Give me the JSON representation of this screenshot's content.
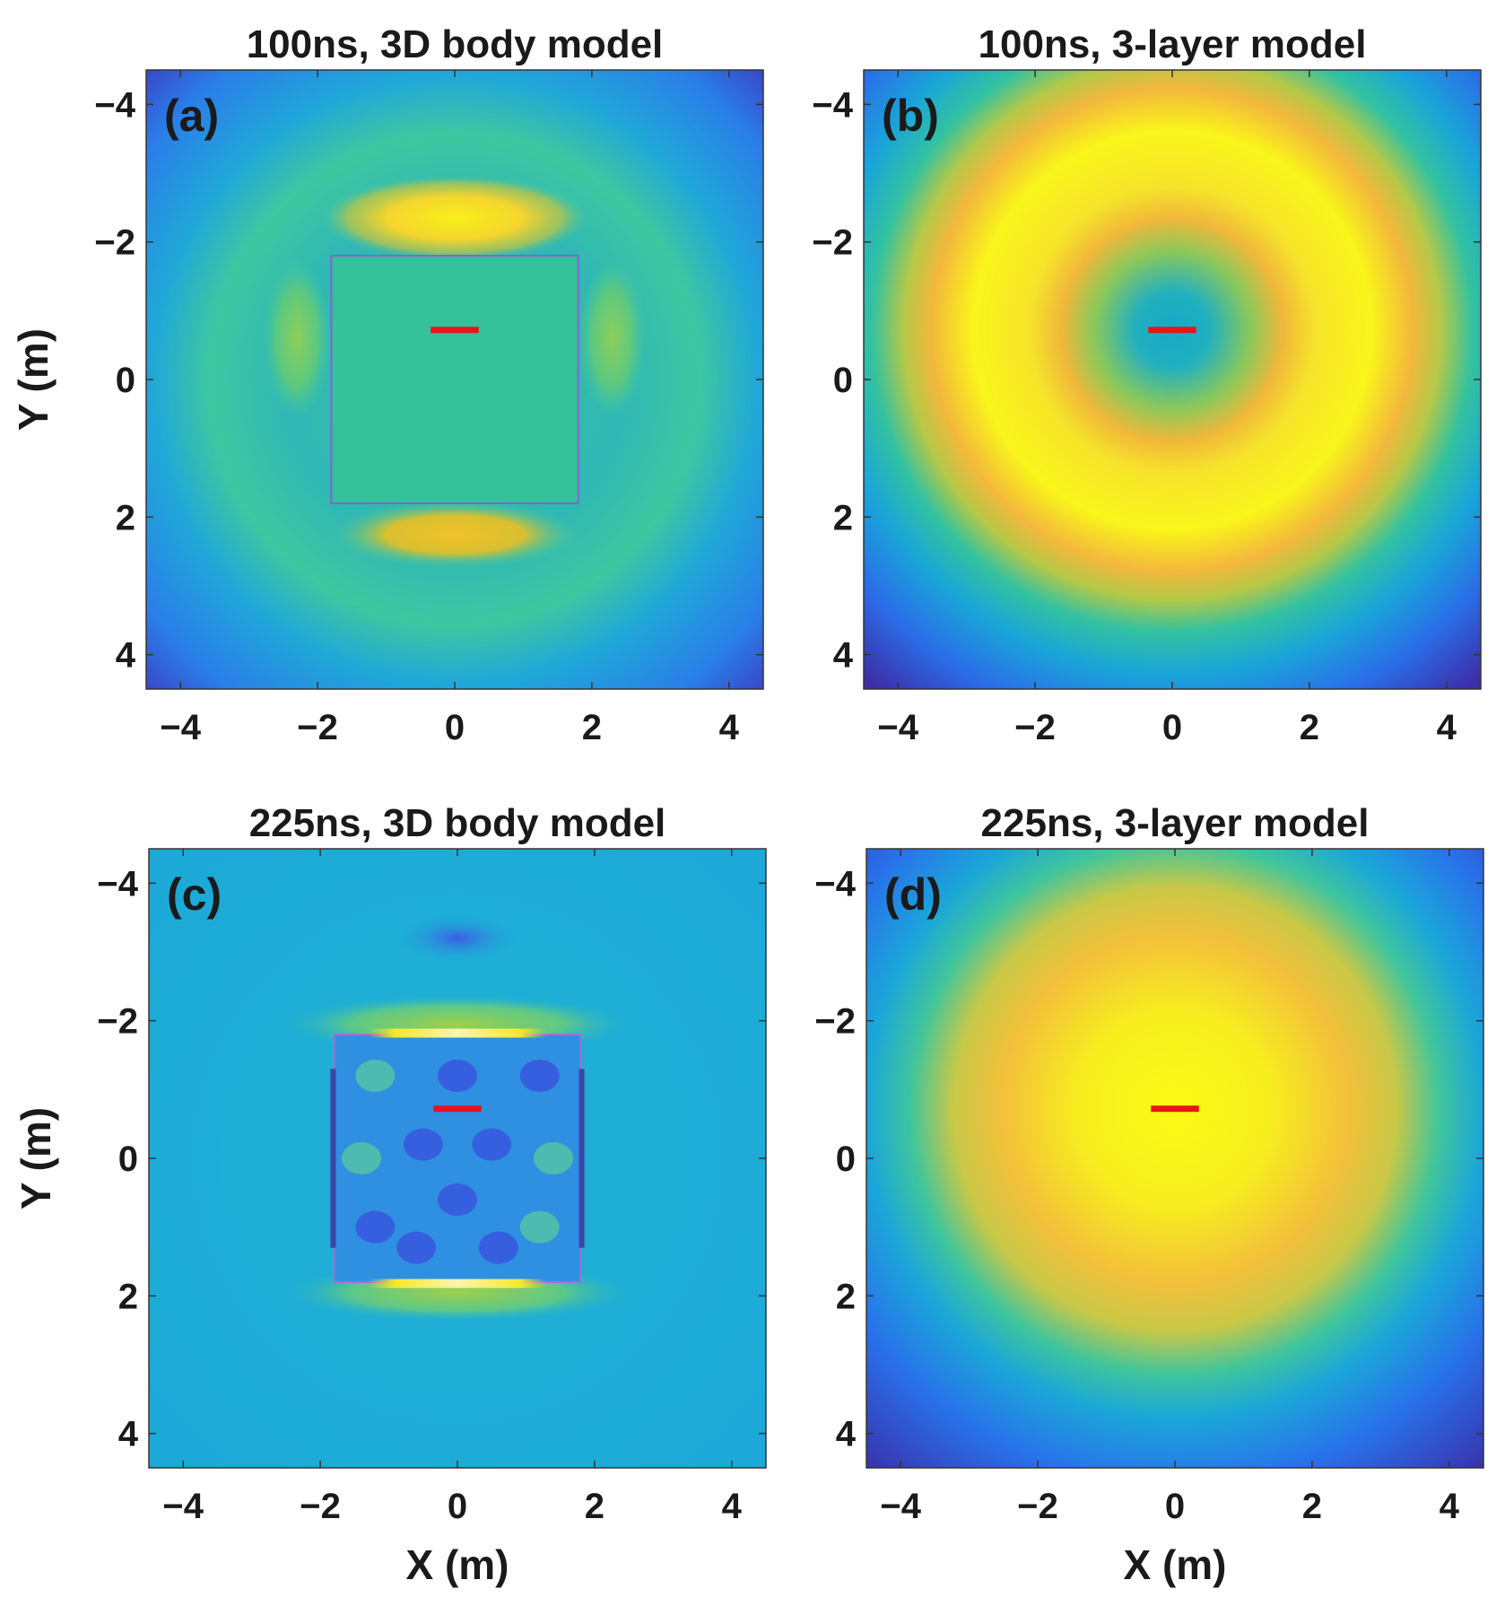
{
  "figure": {
    "description_panels": 4
  },
  "chart_data": [
    {
      "type": "heatmap",
      "panel_label": "(a)",
      "title": "100ns, 3D body model",
      "xlabel": "",
      "ylabel": "Y (m)",
      "xlim": [
        -4.5,
        4.5
      ],
      "ylim": [
        -4.5,
        4.5
      ],
      "y_reversed": true,
      "xticks": [
        -4,
        -2,
        0,
        2,
        4
      ],
      "yticks": [
        -4,
        -2,
        0,
        2,
        4
      ],
      "xtick_labels": [
        "−4",
        "−2",
        "0",
        "2",
        "4"
      ],
      "ytick_labels": [
        "−4",
        "−2",
        "0",
        "2",
        "4"
      ],
      "colormap": "parula",
      "body_box": [
        -1.8,
        1.8,
        -1.8,
        1.8
      ],
      "source_marker": {
        "x0": -0.35,
        "x1": 0.35,
        "y": -0.72,
        "color": "#e8141c"
      }
    },
    {
      "type": "heatmap",
      "panel_label": "(b)",
      "title": "100ns, 3-layer model",
      "xlabel": "",
      "ylabel": "",
      "xlim": [
        -4.5,
        4.5
      ],
      "ylim": [
        -4.5,
        4.5
      ],
      "y_reversed": true,
      "xticks": [
        -4,
        -2,
        0,
        2,
        4
      ],
      "yticks": [
        -4,
        -2,
        0,
        2,
        4
      ],
      "xtick_labels": [
        "−4",
        "−2",
        "0",
        "2",
        "4"
      ],
      "ytick_labels": [
        "−4",
        "−2",
        "0",
        "2",
        "4"
      ],
      "colormap": "parula",
      "source_marker": {
        "x0": -0.35,
        "x1": 0.35,
        "y": -0.72,
        "color": "#e8141c"
      }
    },
    {
      "type": "heatmap",
      "panel_label": "(c)",
      "title": "225ns, 3D body model",
      "xlabel": "X (m)",
      "ylabel": "Y (m)",
      "xlim": [
        -4.5,
        4.5
      ],
      "ylim": [
        -4.5,
        4.5
      ],
      "y_reversed": true,
      "xticks": [
        -4,
        -2,
        0,
        2,
        4
      ],
      "yticks": [
        -4,
        -2,
        0,
        2,
        4
      ],
      "xtick_labels": [
        "−4",
        "−2",
        "0",
        "2",
        "4"
      ],
      "ytick_labels": [
        "−4",
        "−2",
        "0",
        "2",
        "4"
      ],
      "colormap": "parula",
      "body_box": [
        -1.8,
        1.8,
        -1.8,
        1.8
      ],
      "source_marker": {
        "x0": -0.35,
        "x1": 0.35,
        "y": -0.72,
        "color": "#e8141c"
      }
    },
    {
      "type": "heatmap",
      "panel_label": "(d)",
      "title": "225ns, 3-layer model",
      "xlabel": "X (m)",
      "ylabel": "",
      "xlim": [
        -4.5,
        4.5
      ],
      "ylim": [
        -4.5,
        4.5
      ],
      "y_reversed": true,
      "xticks": [
        -4,
        -2,
        0,
        2,
        4
      ],
      "yticks": [
        -4,
        -2,
        0,
        2,
        4
      ],
      "xtick_labels": [
        "−4",
        "−2",
        "0",
        "2",
        "4"
      ],
      "ytick_labels": [
        "−4",
        "−2",
        "0",
        "2",
        "4"
      ],
      "colormap": "parula",
      "source_marker": {
        "x0": -0.35,
        "x1": 0.35,
        "y": -0.72,
        "color": "#e8141c"
      }
    }
  ]
}
